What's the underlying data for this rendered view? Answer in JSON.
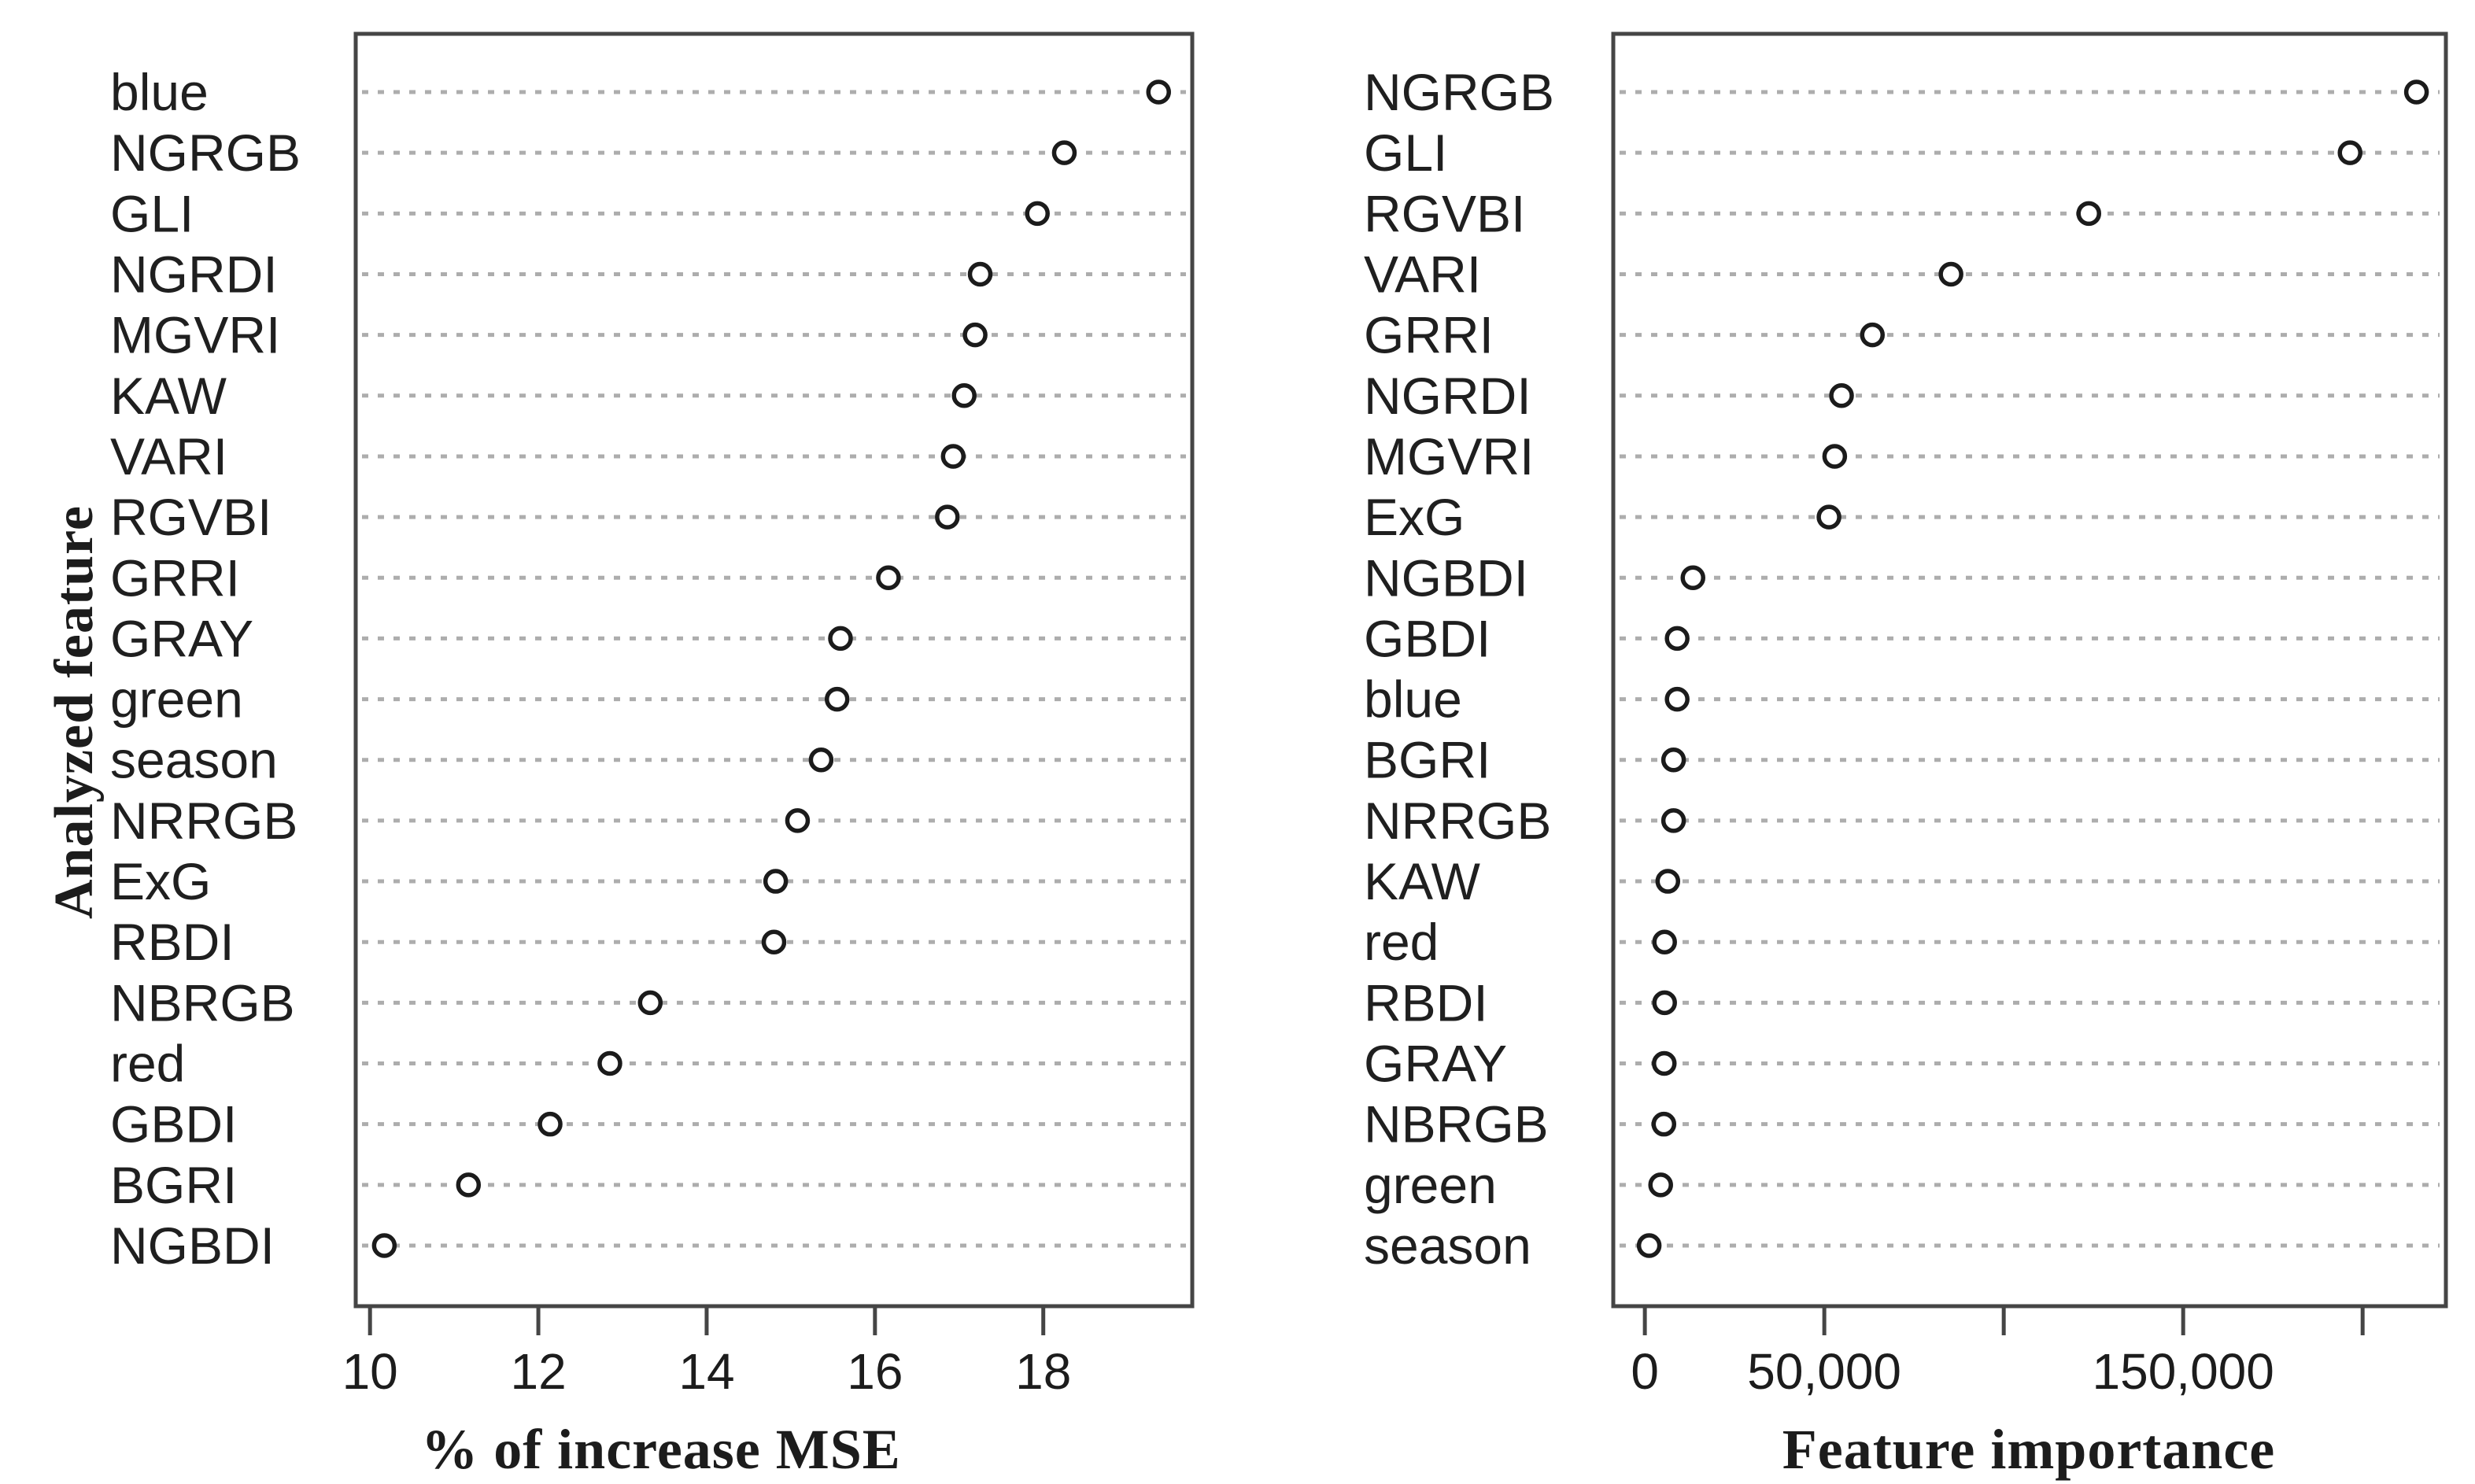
{
  "colors": {
    "background": "#ffffff",
    "text": "#1f1f1f",
    "frame": "#454545",
    "grid": "#adadad",
    "marker_stroke": "#1b1b1b",
    "marker_fill": "#ffffff"
  },
  "chart_data": [
    {
      "type": "scatter",
      "subtype": "dotchart-horizontal",
      "title": "",
      "xlabel": "% of increase MSE",
      "ylabel": "Analyzed feature",
      "legend": "none",
      "grid": "dotted-horizontal-rows",
      "marker": "open-circle",
      "xlim": [
        9.83,
        19.77
      ],
      "xticks": [
        10,
        12,
        14,
        16,
        18
      ],
      "xtick_labels": [
        "10",
        "12",
        "14",
        "16",
        "18"
      ],
      "categories": [
        "blue",
        "NGRGB",
        "GLI",
        "NGRDI",
        "MGVRI",
        "KAW",
        "VARI",
        "RGVBI",
        "GRRI",
        "GRAY",
        "green",
        "season",
        "NRRGB",
        "ExG",
        "RBDI",
        "NBRGB",
        "red",
        "GBDI",
        "BGRI",
        "NGBDI"
      ],
      "values": [
        19.37,
        18.25,
        17.93,
        17.25,
        17.19,
        17.06,
        16.93,
        16.86,
        16.16,
        15.59,
        15.55,
        15.36,
        15.08,
        14.82,
        14.8,
        13.33,
        12.85,
        12.14,
        11.17,
        10.17
      ]
    },
    {
      "type": "scatter",
      "subtype": "dotchart-horizontal",
      "title": "",
      "xlabel": "Feature importance",
      "ylabel": "",
      "legend": "none",
      "grid": "dotted-horizontal-rows",
      "marker": "open-circle",
      "xlim": [
        -8800,
        223200
      ],
      "xticks": [
        0,
        50000,
        100000,
        150000,
        200000
      ],
      "xtick_labels": [
        "0",
        "50,000",
        "",
        "150,000",
        ""
      ],
      "categories": [
        "NGRGB",
        "GLI",
        "RGVBI",
        "VARI",
        "GRRI",
        "NGRDI",
        "MGVRI",
        "ExG",
        "NGBDI",
        "GBDI",
        "blue",
        "BGRI",
        "NRRGB",
        "KAW",
        "red",
        "RBDI",
        "GRAY",
        "NBRGB",
        "green",
        "season"
      ],
      "values": [
        215000,
        196500,
        123700,
        85300,
        63400,
        54800,
        52900,
        51300,
        13400,
        9000,
        9000,
        8000,
        8000,
        6400,
        5500,
        5500,
        5400,
        5300,
        4400,
        1200
      ]
    }
  ]
}
